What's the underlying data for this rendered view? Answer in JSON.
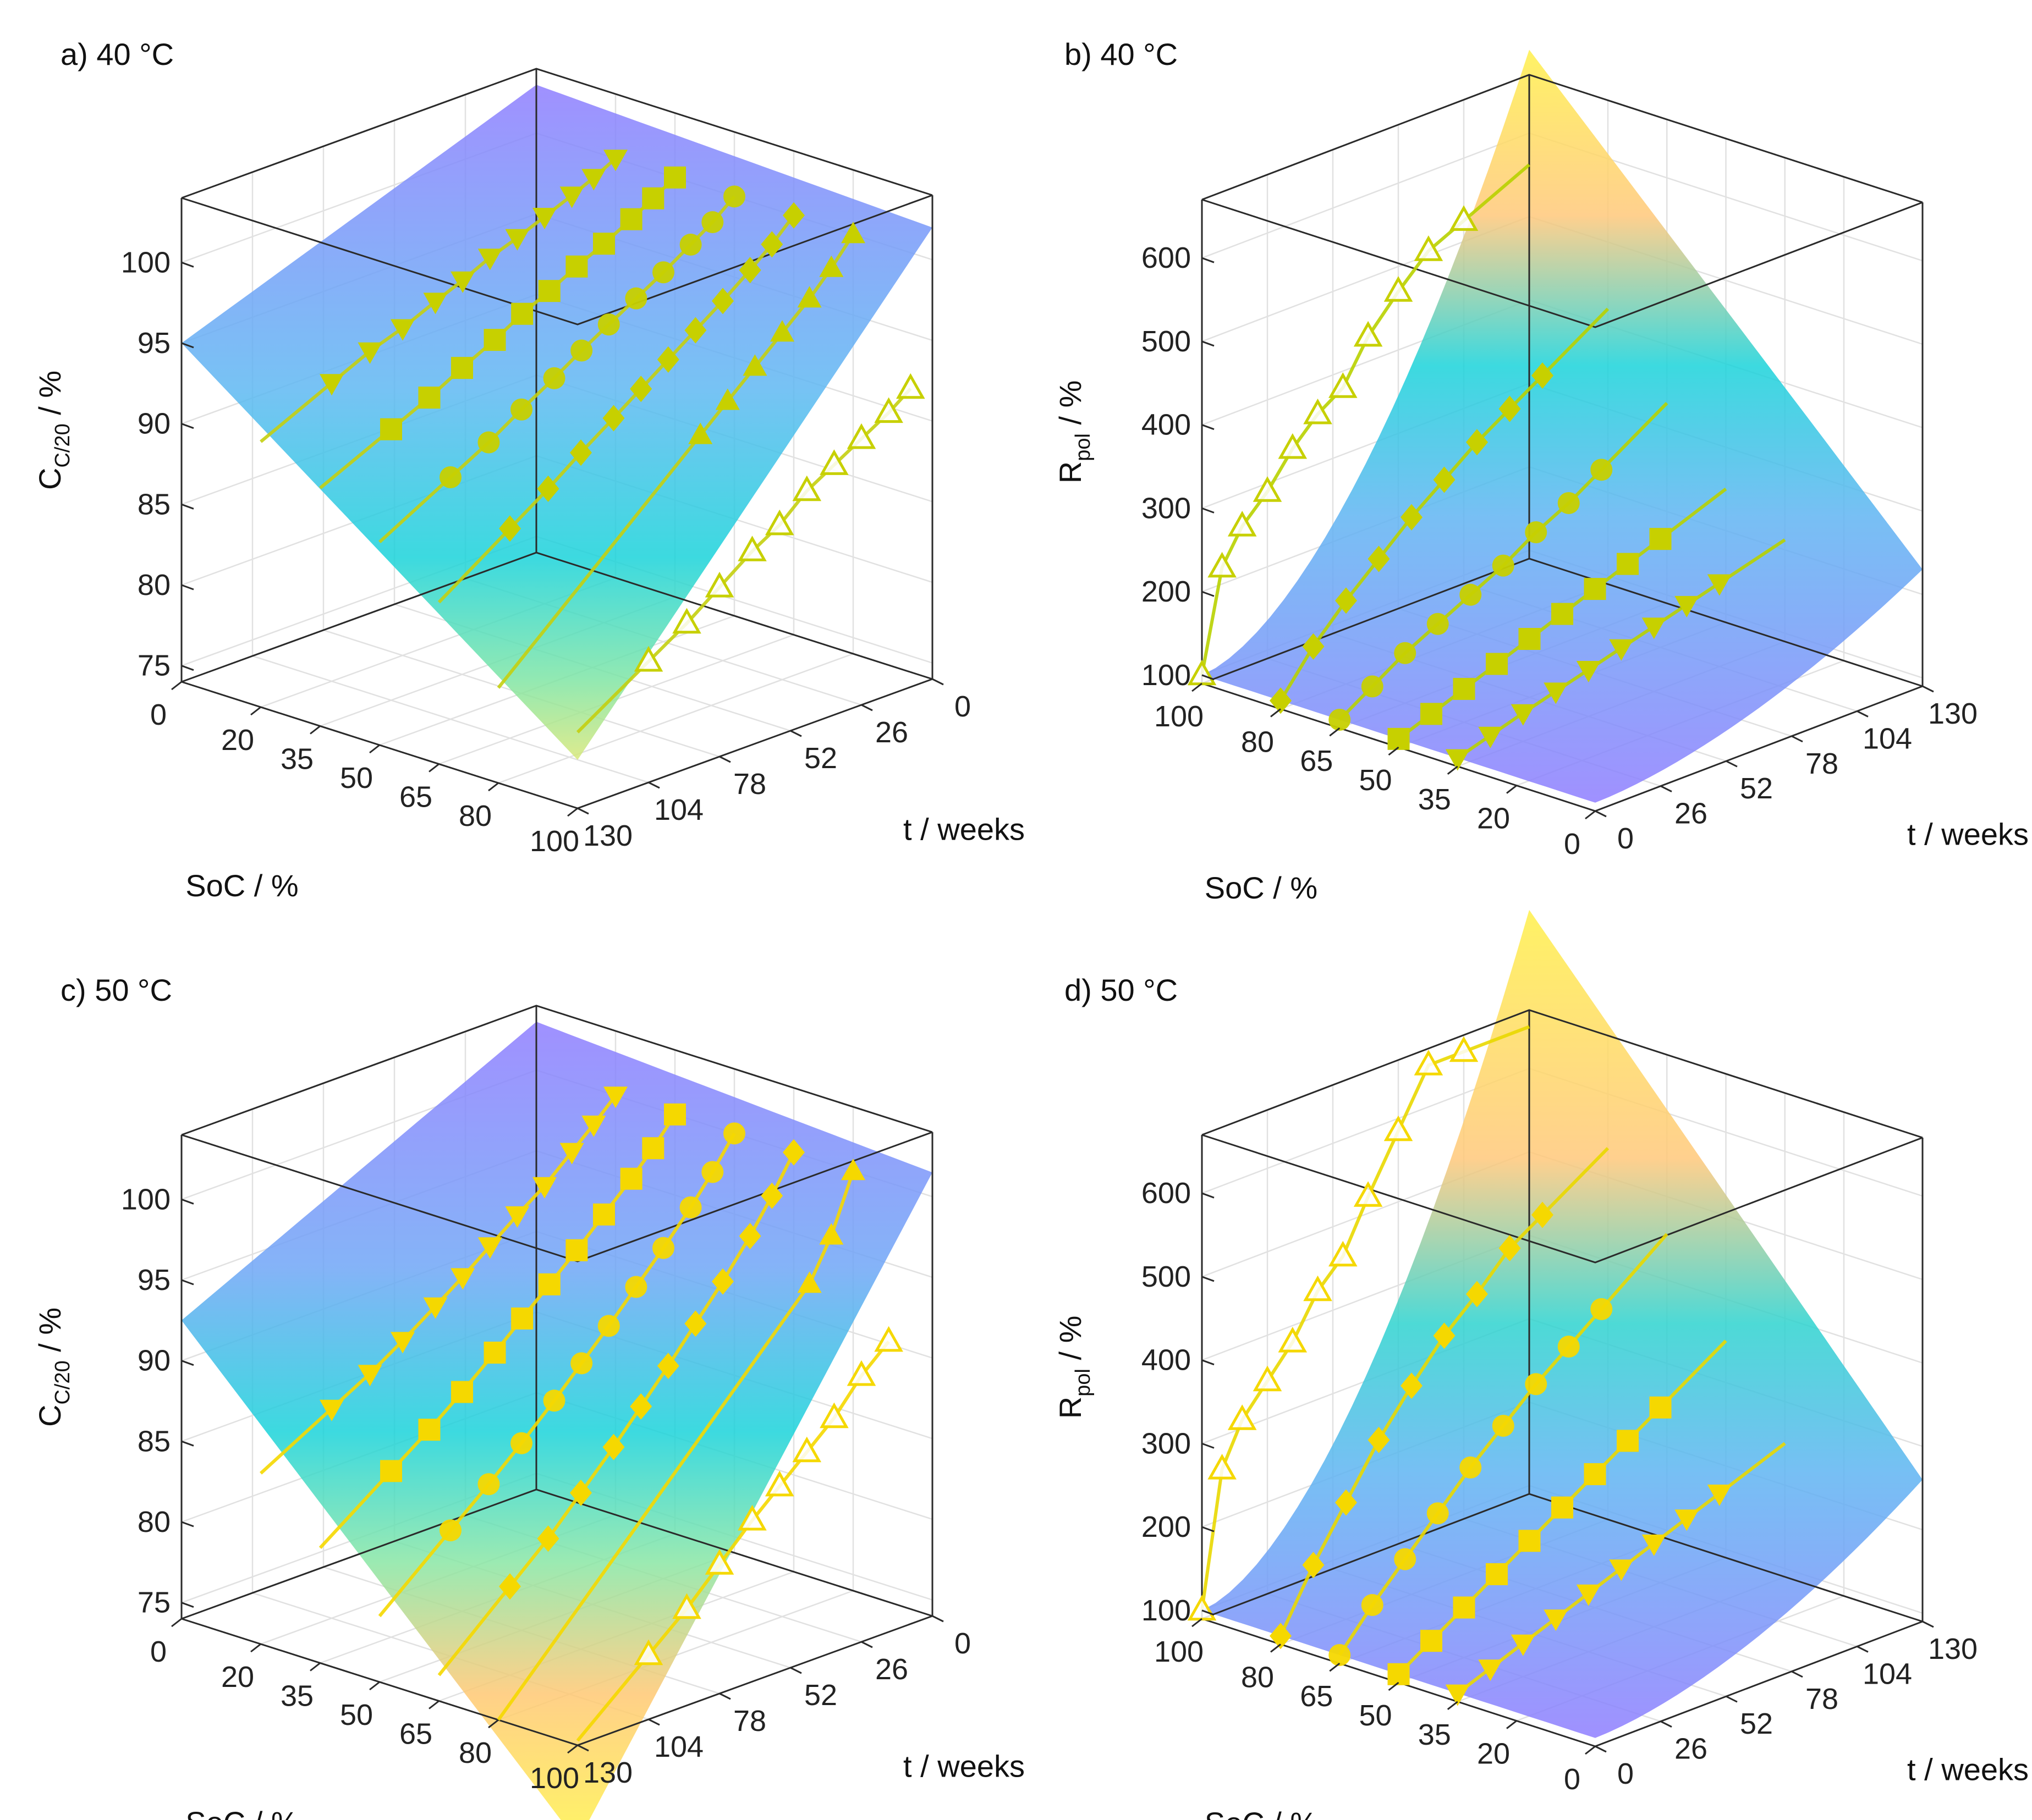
{
  "figure": {
    "id": "four-panel-surfaces"
  },
  "colors": {
    "markerLine": "#c9d200",
    "markerLine50": "#f5dd00",
    "dark": "#4a9c7e"
  },
  "chart_data": [
    {
      "type": "surface3d",
      "panel": "a",
      "title": "a) 40 °C",
      "xlabel": "SoC   /   %",
      "ylabel": "t   /   weeks",
      "zlabel": {
        "main": "C",
        "sub": "C/20",
        "unit": "   /   %"
      },
      "soc_ticks": [
        "0",
        "20",
        "35",
        "50",
        "65",
        "80",
        "100"
      ],
      "t_ticks": [
        "0",
        "26",
        "52",
        "78",
        "104",
        "130"
      ],
      "z_ticks": [
        "75",
        "80",
        "85",
        "90",
        "95",
        "100"
      ],
      "zlim": [
        74,
        104
      ],
      "surface_corners": {
        "soc0_t0": 103,
        "soc100_t0": 102,
        "soc0_t130": 95,
        "soc100_t130": 77
      },
      "series": [
        {
          "soc": 20,
          "marker": "triangle-down",
          "t": [
            0,
            8,
            16,
            26,
            36,
            46,
            56,
            66,
            78,
            90,
            104
          ],
          "values": [
            100,
            99.3,
            98.7,
            98,
            97.3,
            96.7,
            95.9,
            95.2,
            94.3,
            93.6,
            92.5
          ]
        },
        {
          "soc": 35,
          "marker": "square",
          "t": [
            0,
            8,
            16,
            26,
            36,
            46,
            56,
            66,
            78,
            90,
            104
          ],
          "values": [
            100,
            99.2,
            98.4,
            97.5,
            96.7,
            95.8,
            95,
            94,
            93,
            91.9,
            90.8
          ]
        },
        {
          "soc": 50,
          "marker": "circle",
          "t": [
            0,
            8,
            16,
            26,
            36,
            46,
            56,
            66,
            78,
            90,
            104
          ],
          "values": [
            100,
            98.9,
            98,
            96.9,
            95.9,
            94.9,
            93.9,
            92.8,
            91.6,
            90.3,
            89
          ]
        },
        {
          "soc": 65,
          "marker": "diamond",
          "t": [
            0,
            8,
            16,
            26,
            36,
            46,
            56,
            66,
            78,
            90,
            104
          ],
          "values": [
            100,
            98.7,
            97.6,
            96.3,
            95.1,
            93.9,
            92.7,
            91.5,
            90.1,
            88.6,
            87
          ]
        },
        {
          "soc": 80,
          "marker": "triangle-up",
          "t": [
            0,
            8,
            16,
            26,
            36,
            46,
            56
          ],
          "values": [
            100,
            98.4,
            97,
            95.5,
            94,
            92.5,
            91
          ]
        },
        {
          "soc": 100,
          "marker": "triangle-up-open",
          "t": [
            8,
            16,
            26,
            36,
            46,
            56,
            66,
            78,
            90,
            104
          ],
          "values": [
            92.5,
            91.5,
            90.5,
            89.5,
            88.5,
            87,
            86,
            84.5,
            83,
            81.5
          ]
        }
      ]
    },
    {
      "type": "surface3d",
      "panel": "b",
      "title": "b) 40 °C",
      "xlabel": "SoC   /   %",
      "ylabel": "t   /   weeks",
      "zlabel": {
        "main": "R",
        "sub": "pol",
        "unit": "   /   %"
      },
      "soc_ticks": [
        "100",
        "80",
        "65",
        "50",
        "35",
        "20",
        "0"
      ],
      "t_ticks": [
        "0",
        "26",
        "52",
        "78",
        "104",
        "130"
      ],
      "z_ticks": [
        "100",
        "200",
        "300",
        "400",
        "500",
        "600"
      ],
      "zlim": [
        90,
        670
      ],
      "surface_corners": {
        "soc0_t0": 100,
        "soc100_t0": 100,
        "soc0_t130": 230,
        "soc100_t130": 700
      },
      "series": [
        {
          "soc": 100,
          "marker": "triangle-up-open",
          "t": [
            0,
            8,
            16,
            26,
            36,
            46,
            56,
            66,
            78,
            90,
            104
          ],
          "values": [
            100,
            220,
            260,
            290,
            330,
            360,
            380,
            430,
            470,
            505,
            525
          ]
        },
        {
          "soc": 80,
          "marker": "diamond",
          "t": [
            0,
            13,
            26,
            39,
            52,
            65,
            78,
            91,
            104
          ],
          "values": [
            100,
            150,
            190,
            225,
            260,
            290,
            320,
            345,
            370
          ]
        },
        {
          "soc": 65,
          "marker": "circle",
          "t": [
            0,
            13,
            26,
            39,
            52,
            65,
            78,
            91,
            104
          ],
          "values": [
            100,
            125,
            150,
            170,
            190,
            210,
            235,
            255,
            280
          ]
        },
        {
          "soc": 50,
          "marker": "square",
          "t": [
            0,
            13,
            26,
            39,
            52,
            65,
            78,
            91,
            104
          ],
          "values": [
            100,
            115,
            130,
            145,
            160,
            175,
            190,
            205,
            220
          ]
        },
        {
          "soc": 35,
          "marker": "triangle-down",
          "t": [
            0,
            13,
            26,
            39,
            52,
            65,
            78,
            91,
            104
          ],
          "values": [
            100,
            112,
            124,
            135,
            146,
            157,
            168,
            179,
            190
          ]
        }
      ]
    },
    {
      "type": "surface3d",
      "panel": "c",
      "title": "c) 50 °C",
      "xlabel": "SoC   /   %",
      "ylabel": "t   /   weeks",
      "zlabel": {
        "main": "C",
        "sub": "C/20",
        "unit": "   /   %"
      },
      "soc_ticks": [
        "0",
        "20",
        "35",
        "50",
        "65",
        "80",
        "100"
      ],
      "t_ticks": [
        "0",
        "26",
        "52",
        "78",
        "104",
        "130"
      ],
      "z_ticks": [
        "75",
        "80",
        "85",
        "90",
        "95",
        "100"
      ],
      "zlim": [
        74,
        104
      ],
      "surface_corners": {
        "soc0_t0": 103,
        "soc100_t0": 101.5,
        "soc0_t130": 92.5,
        "soc100_t130": 68
      },
      "series": [
        {
          "soc": 20,
          "marker": "triangle-down",
          "t": [
            0,
            8,
            16,
            26,
            36,
            46,
            56,
            66,
            78,
            90,
            104
          ],
          "values": [
            100,
            98.7,
            97.5,
            96,
            94.8,
            93.5,
            92.2,
            91,
            89.6,
            88.3,
            87
          ]
        },
        {
          "soc": 35,
          "marker": "square",
          "t": [
            0,
            8,
            16,
            26,
            36,
            46,
            56,
            66,
            78,
            90,
            104
          ],
          "values": [
            100,
            98.4,
            97,
            95.4,
            93.8,
            92.3,
            90.8,
            89.3,
            87.6,
            86,
            84.3
          ]
        },
        {
          "soc": 50,
          "marker": "circle",
          "t": [
            0,
            8,
            16,
            26,
            36,
            46,
            56,
            66,
            78,
            90,
            104
          ],
          "values": [
            100,
            98.1,
            96.4,
            94.5,
            92.7,
            90.9,
            89.2,
            87.5,
            85.6,
            83.8,
            81.8
          ]
        },
        {
          "soc": 65,
          "marker": "diamond",
          "t": [
            0,
            8,
            16,
            26,
            36,
            46,
            56,
            66,
            78,
            90,
            104
          ],
          "values": [
            100,
            97.8,
            95.8,
            93.6,
            91.6,
            89.6,
            87.7,
            85.8,
            83.7,
            81.6,
            79.5
          ]
        },
        {
          "soc": 80,
          "marker": "triangle-up",
          "t": [
            0,
            8,
            16
          ],
          "values": [
            100,
            96.5,
            94
          ]
        },
        {
          "soc": 100,
          "marker": "triangle-up-open",
          "t": [
            16,
            26,
            36,
            46,
            56,
            66,
            78,
            90,
            104
          ],
          "values": [
            92,
            90.5,
            88.5,
            87,
            85.5,
            84,
            82,
            80,
            78
          ]
        }
      ]
    },
    {
      "type": "surface3d",
      "panel": "d",
      "title": "d) 50 °C",
      "xlabel": "SoC   /   %",
      "ylabel": "t   /   weeks",
      "zlabel": {
        "main": "R",
        "sub": "pol",
        "unit": "   /   %"
      },
      "soc_ticks": [
        "100",
        "80",
        "65",
        "50",
        "35",
        "20",
        "0"
      ],
      "t_ticks": [
        "0",
        "26",
        "52",
        "78",
        "104",
        "130"
      ],
      "z_ticks": [
        "100",
        "200",
        "300",
        "400",
        "500",
        "600"
      ],
      "zlim": [
        90,
        670
      ],
      "surface_corners": {
        "soc0_t0": 100,
        "soc100_t0": 100,
        "soc0_t130": 260,
        "soc100_t130": 790
      },
      "series": [
        {
          "soc": 100,
          "marker": "triangle-up-open",
          "t": [
            0,
            8,
            16,
            26,
            36,
            46,
            56,
            66,
            78,
            90,
            104
          ],
          "values": [
            100,
            260,
            310,
            345,
            380,
            430,
            460,
            520,
            585,
            650,
            650
          ]
        },
        {
          "soc": 80,
          "marker": "diamond",
          "t": [
            0,
            13,
            26,
            39,
            52,
            65,
            78,
            91,
            104
          ],
          "values": [
            100,
            170,
            230,
            290,
            340,
            385,
            420,
            460,
            485
          ]
        },
        {
          "soc": 65,
          "marker": "circle",
          "t": [
            0,
            13,
            26,
            39,
            52,
            65,
            78,
            91,
            104
          ],
          "values": [
            100,
            145,
            185,
            225,
            265,
            300,
            335,
            365,
            395
          ]
        },
        {
          "soc": 50,
          "marker": "square",
          "t": [
            0,
            13,
            26,
            39,
            52,
            65,
            78,
            91,
            104
          ],
          "values": [
            100,
            125,
            150,
            175,
            200,
            225,
            250,
            275,
            300
          ]
        },
        {
          "soc": 35,
          "marker": "triangle-down",
          "t": [
            0,
            13,
            26,
            39,
            52,
            65,
            78,
            91,
            104
          ],
          "values": [
            100,
            115,
            130,
            145,
            160,
            175,
            190,
            205,
            220
          ]
        }
      ]
    }
  ]
}
